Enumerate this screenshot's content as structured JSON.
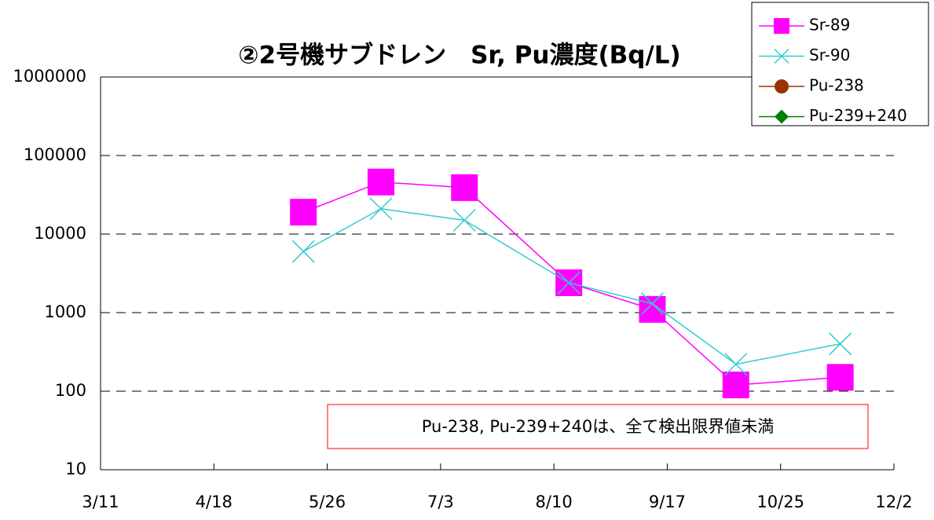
{
  "chart_data": {
    "type": "line",
    "title": "②2号機サブドレン　Sr, Pu濃度(Bq/L)",
    "annotation": "Pu-238, Pu-239+240は、全て検出限界値未満",
    "x": [
      "5/18",
      "6/13",
      "7/11",
      "8/15",
      "9/12",
      "10/10",
      "11/14"
    ],
    "series": [
      {
        "name": "Sr-89",
        "color": "#ff00ff",
        "marker": "square",
        "values": [
          19000,
          46000,
          39000,
          2400,
          1100,
          120,
          150
        ]
      },
      {
        "name": "Sr-90",
        "color": "#33cccc",
        "marker": "x",
        "values": [
          6000,
          21000,
          15000,
          2400,
          1300,
          220,
          400
        ]
      },
      {
        "name": "Pu-238",
        "color": "#993300",
        "marker": "circle",
        "values": [
          null,
          null,
          null,
          null,
          null,
          null,
          null
        ]
      },
      {
        "name": "Pu-239+240",
        "color": "#008000",
        "marker": "diamond",
        "values": [
          null,
          null,
          null,
          null,
          null,
          null,
          null
        ]
      }
    ],
    "xlim": [
      "3/11",
      "12/2"
    ],
    "xticks": [
      "3/11",
      "4/18",
      "5/26",
      "7/3",
      "8/10",
      "9/17",
      "10/25",
      "12/2"
    ],
    "ylim": [
      10,
      1000000
    ],
    "yscale": "log",
    "yticks": [
      10,
      100,
      1000,
      10000,
      100000,
      1000000
    ],
    "grid": true,
    "legend": "upper right"
  }
}
